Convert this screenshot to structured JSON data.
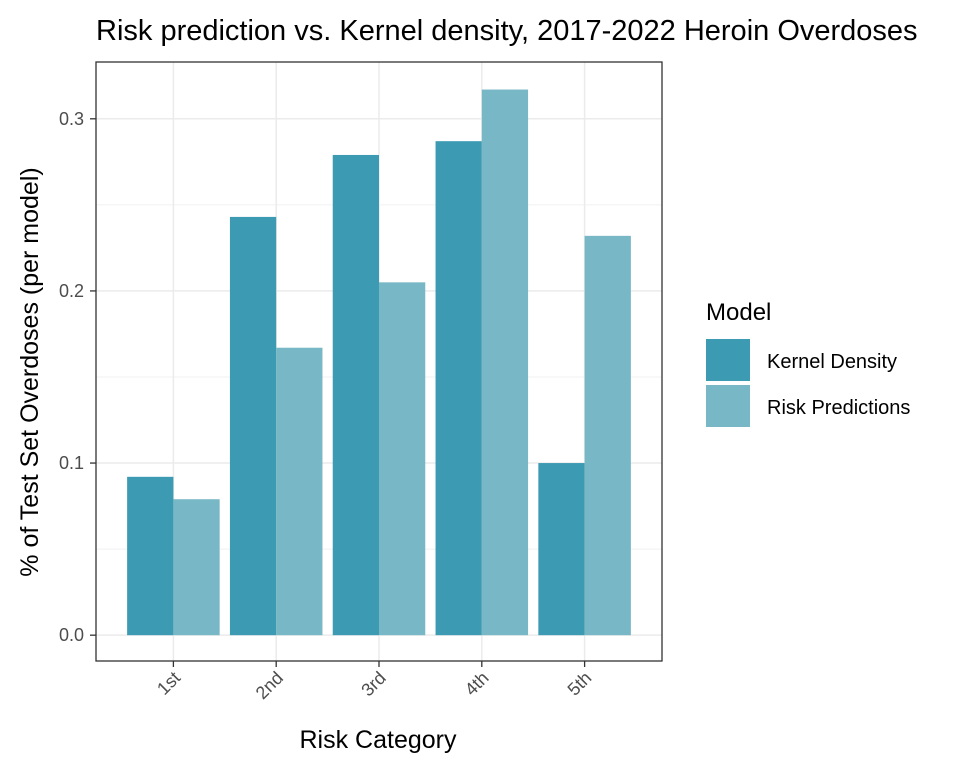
{
  "chart_data": {
    "type": "bar",
    "title": "Risk prediction vs. Kernel density, 2017-2022 Heroin Overdoses",
    "xlabel": "Risk Category",
    "ylabel": "% of Test Set Overdoses (per model)",
    "categories": [
      "1st",
      "2nd",
      "3rd",
      "4th",
      "5th"
    ],
    "series": [
      {
        "name": "Kernel Density",
        "values": [
          0.092,
          0.243,
          0.279,
          0.287,
          0.1
        ]
      },
      {
        "name": "Risk Predictions",
        "values": [
          0.079,
          0.167,
          0.205,
          0.317,
          0.232
        ]
      }
    ],
    "ylim": [
      -0.015,
      0.333
    ],
    "yticks": [
      0.0,
      0.1,
      0.2,
      0.3
    ],
    "ytick_labels": [
      "0.0",
      "0.1",
      "0.2",
      "0.3"
    ],
    "grid": true,
    "legend": {
      "title": "Model",
      "placement": "right"
    },
    "colors": {
      "Kernel Density": "#3c9ab2",
      "Risk Predictions": "#78b7c5"
    }
  }
}
